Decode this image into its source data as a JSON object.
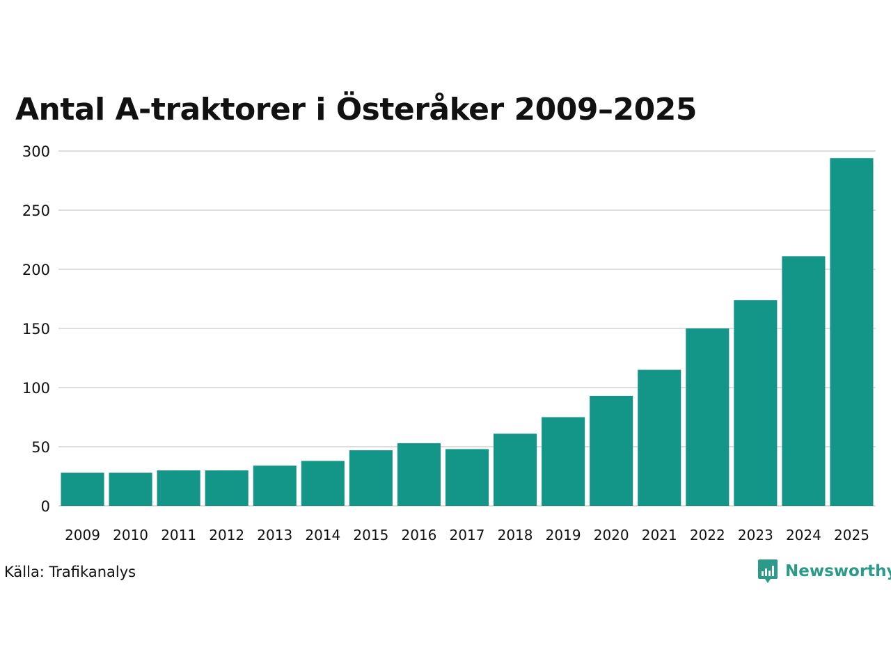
{
  "chart_data": {
    "type": "bar",
    "title": "Antal A-traktorer i Österåker 2009–2025",
    "xlabel": "",
    "ylabel": "",
    "categories": [
      "2009",
      "2010",
      "2011",
      "2012",
      "2013",
      "2014",
      "2015",
      "2016",
      "2017",
      "2018",
      "2019",
      "2020",
      "2021",
      "2022",
      "2023",
      "2024",
      "2025"
    ],
    "values": [
      28,
      28,
      30,
      30,
      34,
      38,
      47,
      53,
      48,
      61,
      75,
      93,
      115,
      150,
      174,
      211,
      294
    ],
    "ylim": [
      0,
      300
    ],
    "yticks": [
      0,
      50,
      100,
      150,
      200,
      250,
      300
    ],
    "grid": true,
    "legend": "none",
    "bar_color": "#139587"
  },
  "source": "Källa: Trafikanalys",
  "brand": {
    "name": "Newsworthy",
    "color": "#2b9a88",
    "icon": "newsworthy-logo-icon"
  },
  "colors": {
    "gridline": "#dedede",
    "axis_text": "#111111"
  }
}
